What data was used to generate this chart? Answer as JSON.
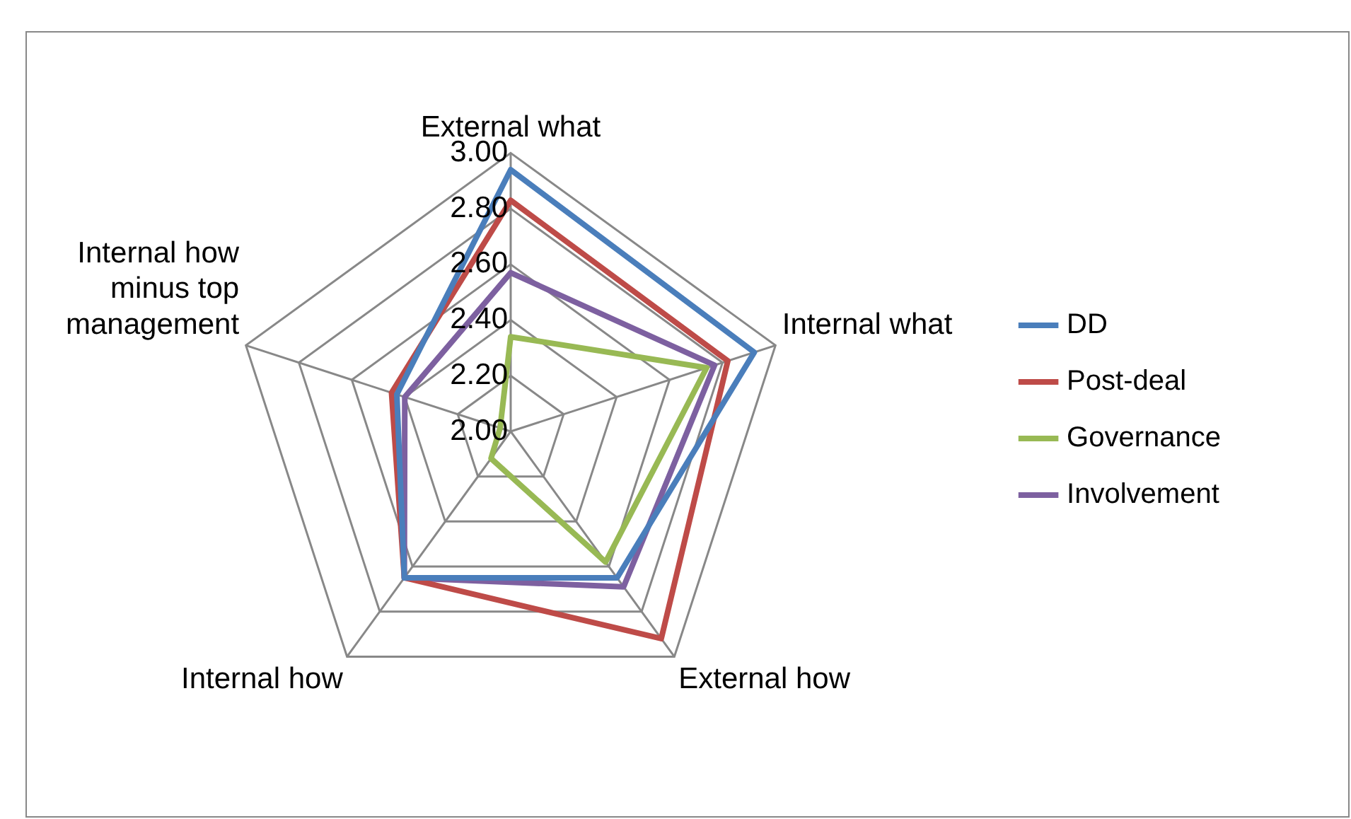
{
  "chart_data": {
    "type": "radar",
    "categories": [
      "External what",
      "Internal what",
      "External how",
      "Internal how",
      "Internal how\nminus top\nmanagement"
    ],
    "series": [
      {
        "name": "DD",
        "color": "#4a7ebb",
        "values": [
          2.94,
          2.92,
          2.65,
          2.65,
          2.43
        ]
      },
      {
        "name": "Post-deal",
        "color": "#be4b48",
        "values": [
          2.83,
          2.82,
          2.92,
          2.65,
          2.45
        ]
      },
      {
        "name": "Governance",
        "color": "#98b954",
        "values": [
          2.34,
          2.74,
          2.58,
          2.12,
          2.04
        ]
      },
      {
        "name": "Involvement",
        "color": "#7d60a0",
        "values": [
          2.57,
          2.77,
          2.69,
          2.65,
          2.4
        ]
      }
    ],
    "ylim": [
      2,
      3
    ],
    "yticks": [
      {
        "value": 2,
        "label": "2.00"
      },
      {
        "value": 2.2,
        "label": "2.20"
      },
      {
        "value": 2.4,
        "label": "2.40"
      },
      {
        "value": 2.6,
        "label": "2.60"
      },
      {
        "value": 2.8,
        "label": "2.80"
      },
      {
        "value": 3,
        "label": "3.00"
      }
    ],
    "grid": true,
    "legend": "right",
    "marker": "none",
    "line_style": "solid"
  }
}
